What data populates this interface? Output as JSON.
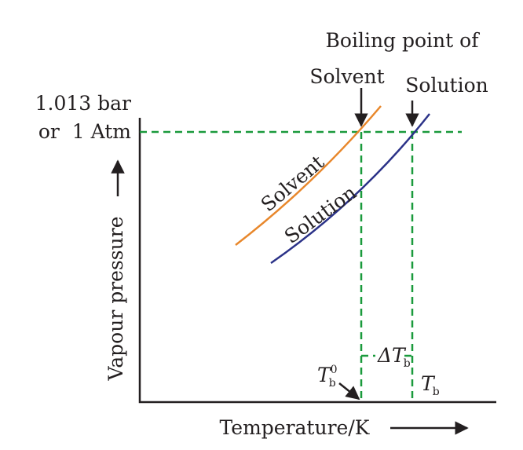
{
  "header": {
    "line1": "Boiling point of"
  },
  "markers": {
    "solvent": "Solvent",
    "solution": "Solution"
  },
  "y_axis": {
    "label": "Vapour pressure",
    "pressure_line1": "1.013 bar",
    "pressure_line2": "or  1 Atm"
  },
  "x_axis": {
    "label": "Temperature/K"
  },
  "curves": [
    {
      "label": "Solvent"
    },
    {
      "label": "Solution"
    }
  ],
  "points": {
    "tb0": {
      "symbol": "T",
      "sub": "b",
      "sup": "0"
    },
    "delta": {
      "symbol": "ΔT",
      "sub": "b"
    },
    "tb": {
      "symbol": "T",
      "sub": "b"
    }
  }
}
